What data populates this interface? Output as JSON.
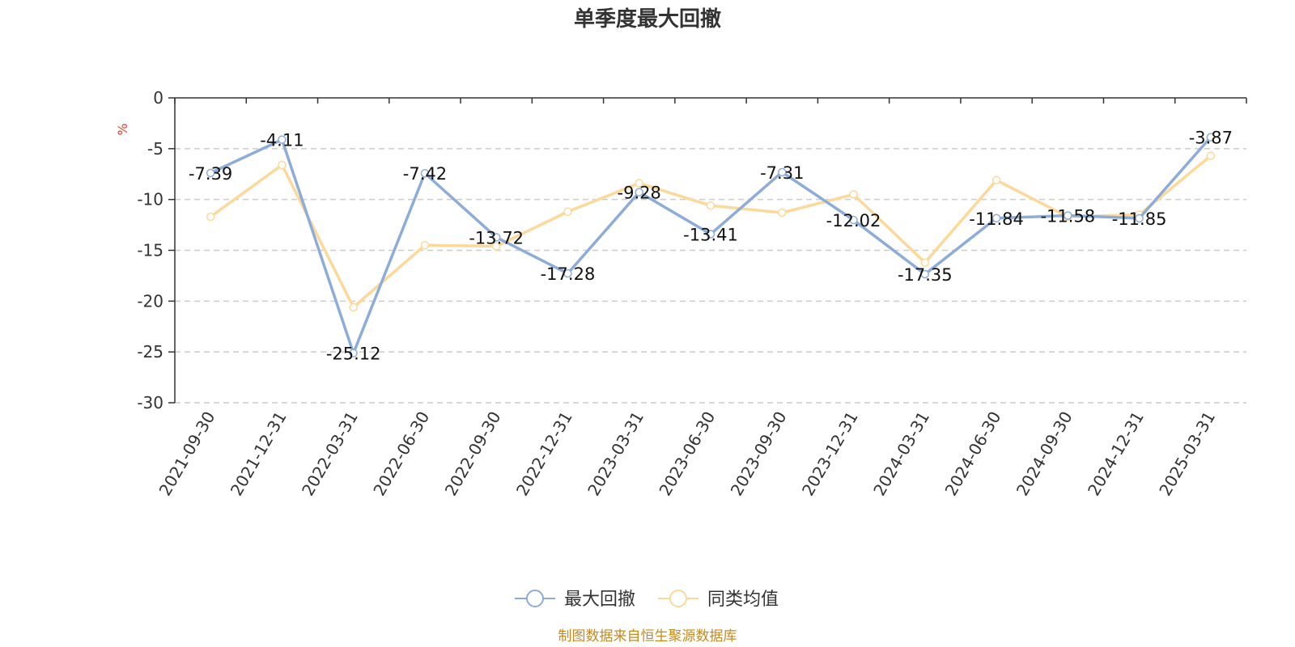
{
  "chart_data": {
    "type": "line",
    "title": "单季度最大回撤",
    "ylabel": "%",
    "ylim": [
      -30,
      0
    ],
    "yticks": [
      0,
      -5,
      -10,
      -15,
      -20,
      -25,
      -30
    ],
    "grid": true,
    "legend_position": "bottom-center",
    "categories": [
      "2021-09-30",
      "2021-12-31",
      "2022-03-31",
      "2022-06-30",
      "2022-09-30",
      "2022-12-31",
      "2023-03-31",
      "2023-06-30",
      "2023-09-30",
      "2023-12-31",
      "2024-03-31",
      "2024-06-30",
      "2024-09-30",
      "2024-12-31",
      "2025-03-31"
    ],
    "series": [
      {
        "name": "最大回撤",
        "color": "#8eacd8",
        "values": [
          -7.39,
          -4.11,
          -25.12,
          -7.42,
          -13.72,
          -17.28,
          -9.28,
          -13.41,
          -7.31,
          -12.02,
          -17.35,
          -11.84,
          -11.58,
          -11.85,
          -3.87
        ],
        "labels": [
          "-7.39",
          "-4.11",
          "-25.12",
          "-7.42",
          "-13.72",
          "-17.28",
          "-9.28",
          "-13.41",
          "-7.31",
          "-12.02",
          "-17.35",
          "-11.84",
          "-11.58",
          "-11.85",
          "-3.87"
        ]
      },
      {
        "name": "同类均值",
        "color": "#fcd99a",
        "values": [
          -11.7,
          -6.6,
          -20.6,
          -14.5,
          -14.6,
          -11.2,
          -8.4,
          -10.6,
          -11.3,
          -9.5,
          -16.2,
          -8.1,
          -11.7,
          -11.5,
          -5.7
        ]
      }
    ],
    "source": "制图数据来自恒生聚源数据库"
  },
  "colors": {
    "title": "#333333",
    "axis": "#333333",
    "grid": "#cccccc",
    "unit": "#e8412b",
    "source": "#c48a1e"
  }
}
